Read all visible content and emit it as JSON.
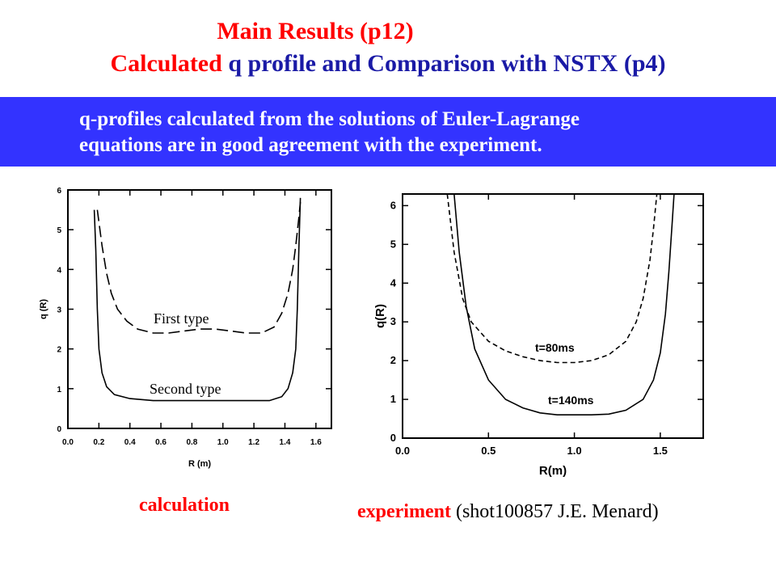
{
  "slide": {
    "title_line1": "Main Results (p12)",
    "title_line2_a": "Calculated",
    "title_line2_b": " q profile and Comparison with NSTX (p4)",
    "banner_line1": "q-profiles calculated from the solutions of Euler-Lagrange",
    "banner_line2": "equations are in  good agreement with the experiment.",
    "caption_left": "calculation",
    "caption_right_label": "experiment",
    "caption_right_rest": "  (shot100857 J.E. Menard)",
    "colors": {
      "title": "#ff0000",
      "banner_bg": "#3333ff",
      "banner_text": "#ffffff"
    }
  },
  "chart_data": [
    {
      "type": "line",
      "title": "",
      "xlabel": "R (m)",
      "ylabel": "q (R)",
      "xlim": [
        0.0,
        1.7
      ],
      "ylim": [
        0,
        6
      ],
      "xticks": [
        "0.0",
        "0.2",
        "0.4",
        "0.6",
        "0.8",
        "1.0",
        "1.2",
        "1.4",
        "1.6"
      ],
      "yticks": [
        "0",
        "1",
        "2",
        "3",
        "4",
        "5",
        "6"
      ],
      "grid": false,
      "series": [
        {
          "name": "First type",
          "style": "dashed",
          "x": [
            0.19,
            0.22,
            0.25,
            0.28,
            0.32,
            0.38,
            0.45,
            0.55,
            0.65,
            0.75,
            0.85,
            0.95,
            1.05,
            1.15,
            1.25,
            1.33,
            1.38,
            1.42,
            1.45,
            1.47,
            1.49,
            1.5
          ],
          "y": [
            5.5,
            4.6,
            3.9,
            3.4,
            3.0,
            2.7,
            2.5,
            2.4,
            2.4,
            2.45,
            2.5,
            2.5,
            2.45,
            2.4,
            2.4,
            2.55,
            2.9,
            3.4,
            4.0,
            4.6,
            5.3,
            5.7
          ]
        },
        {
          "name": "Second type",
          "style": "solid",
          "x": [
            0.17,
            0.18,
            0.19,
            0.2,
            0.22,
            0.25,
            0.3,
            0.4,
            0.55,
            0.75,
            0.95,
            1.15,
            1.3,
            1.38,
            1.42,
            1.45,
            1.47,
            1.48,
            1.49,
            1.5
          ],
          "y": [
            5.5,
            4.5,
            3.0,
            2.0,
            1.4,
            1.05,
            0.85,
            0.75,
            0.7,
            0.7,
            0.7,
            0.7,
            0.7,
            0.8,
            1.0,
            1.4,
            2.0,
            3.0,
            4.5,
            5.8
          ]
        }
      ],
      "annotations": [
        "First type",
        "Second type"
      ]
    },
    {
      "type": "line",
      "title": "",
      "xlabel": "R(m)",
      "ylabel": "q(R)",
      "xlim": [
        0.0,
        1.75
      ],
      "ylim": [
        0,
        6.3
      ],
      "xticks": [
        "0.0",
        "0.5",
        "1.0",
        "1.5"
      ],
      "yticks": [
        "0",
        "1",
        "2",
        "3",
        "4",
        "5",
        "6"
      ],
      "grid": false,
      "series": [
        {
          "name": "t=80ms",
          "style": "dashed",
          "x": [
            0.26,
            0.3,
            0.35,
            0.4,
            0.5,
            0.6,
            0.7,
            0.8,
            0.9,
            1.0,
            1.1,
            1.2,
            1.3,
            1.36,
            1.4,
            1.44,
            1.46,
            1.48
          ],
          "y": [
            6.3,
            4.8,
            3.6,
            3.0,
            2.5,
            2.25,
            2.1,
            2.0,
            1.95,
            1.95,
            2.0,
            2.15,
            2.5,
            3.0,
            3.6,
            4.6,
            5.4,
            6.3
          ]
        },
        {
          "name": "t=140ms",
          "style": "solid",
          "x": [
            0.3,
            0.33,
            0.37,
            0.42,
            0.5,
            0.6,
            0.7,
            0.8,
            0.9,
            1.0,
            1.1,
            1.2,
            1.3,
            1.4,
            1.46,
            1.5,
            1.53,
            1.55,
            1.57,
            1.58
          ],
          "y": [
            6.3,
            4.8,
            3.4,
            2.3,
            1.5,
            1.0,
            0.78,
            0.65,
            0.6,
            0.6,
            0.6,
            0.62,
            0.72,
            1.0,
            1.5,
            2.2,
            3.2,
            4.3,
            5.6,
            6.3
          ]
        }
      ],
      "annotations": [
        "t=80ms",
        "t=140ms"
      ]
    }
  ]
}
